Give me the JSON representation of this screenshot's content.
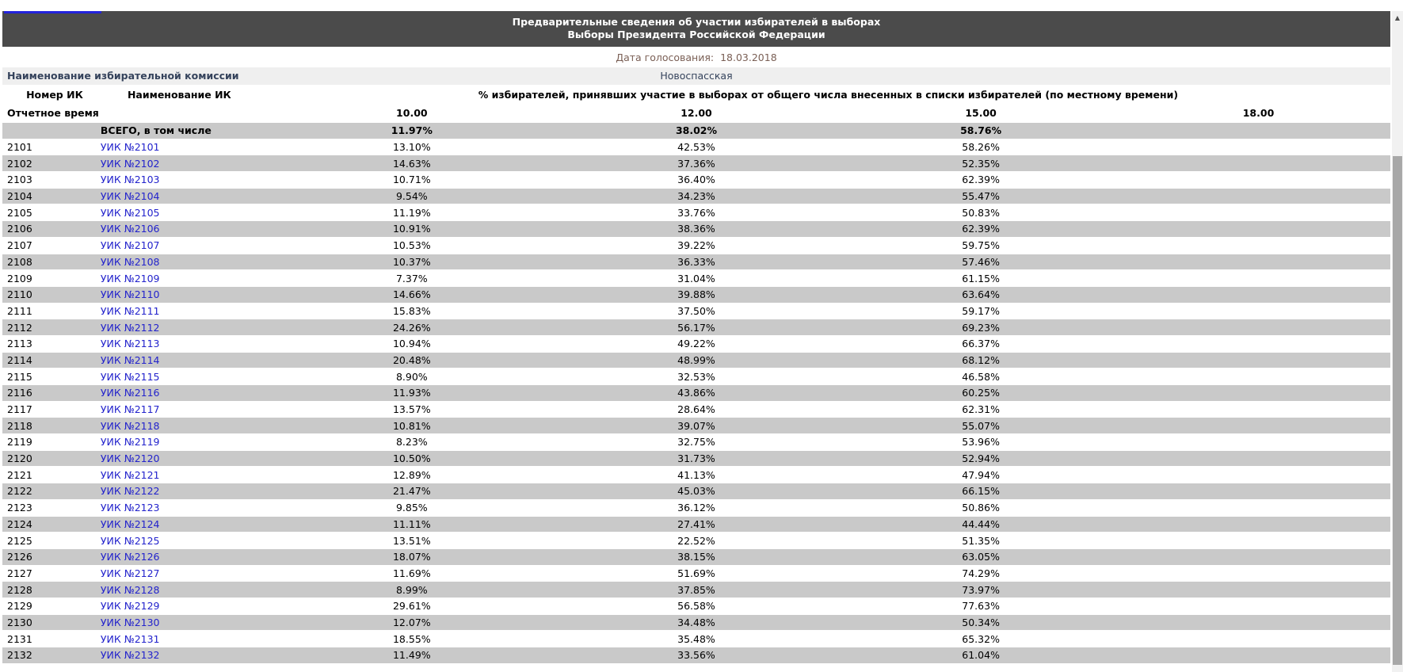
{
  "header": {
    "title_line1": "Предварительные сведения об участии избирателей в выборах",
    "title_line2": "Выборы Президента Российской Федерации",
    "date_label": "Дата голосования:",
    "date_value": "18.03.2018"
  },
  "commission": {
    "label": "Наименование избирательной комиссии",
    "value": "Новоспасская"
  },
  "table": {
    "col_number_header": "Номер ИК",
    "col_name_header": "Наименование ИК",
    "percent_header": "% избирателей, принявших участие в выборах от общего числа внесенных в списки избирателей (по местному времени)",
    "report_time_label": "Отчетное время",
    "times": [
      "10.00",
      "12.00",
      "15.00",
      "18.00"
    ],
    "total_row": {
      "number": "",
      "name": "ВСЕГО, в том числе",
      "values": [
        "11.97%",
        "38.02%",
        "58.76%",
        ""
      ]
    },
    "rows": [
      {
        "number": "2101",
        "name": "УИК №2101",
        "values": [
          "13.10%",
          "42.53%",
          "58.26%",
          ""
        ]
      },
      {
        "number": "2102",
        "name": "УИК №2102",
        "values": [
          "14.63%",
          "37.36%",
          "52.35%",
          ""
        ]
      },
      {
        "number": "2103",
        "name": "УИК №2103",
        "values": [
          "10.71%",
          "36.40%",
          "62.39%",
          ""
        ]
      },
      {
        "number": "2104",
        "name": "УИК №2104",
        "values": [
          "9.54%",
          "34.23%",
          "55.47%",
          ""
        ]
      },
      {
        "number": "2105",
        "name": "УИК №2105",
        "values": [
          "11.19%",
          "33.76%",
          "50.83%",
          ""
        ]
      },
      {
        "number": "2106",
        "name": "УИК №2106",
        "values": [
          "10.91%",
          "38.36%",
          "62.39%",
          ""
        ]
      },
      {
        "number": "2107",
        "name": "УИК №2107",
        "values": [
          "10.53%",
          "39.22%",
          "59.75%",
          ""
        ]
      },
      {
        "number": "2108",
        "name": "УИК №2108",
        "values": [
          "10.37%",
          "36.33%",
          "57.46%",
          ""
        ]
      },
      {
        "number": "2109",
        "name": "УИК №2109",
        "values": [
          "7.37%",
          "31.04%",
          "61.15%",
          ""
        ]
      },
      {
        "number": "2110",
        "name": "УИК №2110",
        "values": [
          "14.66%",
          "39.88%",
          "63.64%",
          ""
        ]
      },
      {
        "number": "2111",
        "name": "УИК №2111",
        "values": [
          "15.83%",
          "37.50%",
          "59.17%",
          ""
        ]
      },
      {
        "number": "2112",
        "name": "УИК №2112",
        "values": [
          "24.26%",
          "56.17%",
          "69.23%",
          ""
        ]
      },
      {
        "number": "2113",
        "name": "УИК №2113",
        "values": [
          "10.94%",
          "49.22%",
          "66.37%",
          ""
        ]
      },
      {
        "number": "2114",
        "name": "УИК №2114",
        "values": [
          "20.48%",
          "48.99%",
          "68.12%",
          ""
        ]
      },
      {
        "number": "2115",
        "name": "УИК №2115",
        "values": [
          "8.90%",
          "32.53%",
          "46.58%",
          ""
        ]
      },
      {
        "number": "2116",
        "name": "УИК №2116",
        "values": [
          "11.93%",
          "43.86%",
          "60.25%",
          ""
        ]
      },
      {
        "number": "2117",
        "name": "УИК №2117",
        "values": [
          "13.57%",
          "28.64%",
          "62.31%",
          ""
        ]
      },
      {
        "number": "2118",
        "name": "УИК №2118",
        "values": [
          "10.81%",
          "39.07%",
          "55.07%",
          ""
        ]
      },
      {
        "number": "2119",
        "name": "УИК №2119",
        "values": [
          "8.23%",
          "32.75%",
          "53.96%",
          ""
        ]
      },
      {
        "number": "2120",
        "name": "УИК №2120",
        "values": [
          "10.50%",
          "31.73%",
          "52.94%",
          ""
        ]
      },
      {
        "number": "2121",
        "name": "УИК №2121",
        "values": [
          "12.89%",
          "41.13%",
          "47.94%",
          ""
        ]
      },
      {
        "number": "2122",
        "name": "УИК №2122",
        "values": [
          "21.47%",
          "45.03%",
          "66.15%",
          ""
        ]
      },
      {
        "number": "2123",
        "name": "УИК №2123",
        "values": [
          "9.85%",
          "36.12%",
          "50.86%",
          ""
        ]
      },
      {
        "number": "2124",
        "name": "УИК №2124",
        "values": [
          "11.11%",
          "27.41%",
          "44.44%",
          ""
        ]
      },
      {
        "number": "2125",
        "name": "УИК №2125",
        "values": [
          "13.51%",
          "22.52%",
          "51.35%",
          ""
        ]
      },
      {
        "number": "2126",
        "name": "УИК №2126",
        "values": [
          "18.07%",
          "38.15%",
          "63.05%",
          ""
        ]
      },
      {
        "number": "2127",
        "name": "УИК №2127",
        "values": [
          "11.69%",
          "51.69%",
          "74.29%",
          ""
        ]
      },
      {
        "number": "2128",
        "name": "УИК №2128",
        "values": [
          "8.99%",
          "37.85%",
          "73.97%",
          ""
        ]
      },
      {
        "number": "2129",
        "name": "УИК №2129",
        "values": [
          "29.61%",
          "56.58%",
          "77.63%",
          ""
        ]
      },
      {
        "number": "2130",
        "name": "УИК №2130",
        "values": [
          "12.07%",
          "34.48%",
          "50.34%",
          ""
        ]
      },
      {
        "number": "2131",
        "name": "УИК №2131",
        "values": [
          "18.55%",
          "35.48%",
          "65.32%",
          ""
        ]
      },
      {
        "number": "2132",
        "name": "УИК №2132",
        "values": [
          "11.49%",
          "33.56%",
          "61.04%",
          ""
        ]
      }
    ]
  },
  "icons": {
    "scroll_up": "▲",
    "scroll_down": "▼"
  },
  "colors": {
    "title_bar_bg": "#4b4b4b",
    "row_shade": "#c9c9c9",
    "commission_row_bg": "#efefef",
    "link": "#2323cc",
    "date_text": "#7a5f55"
  }
}
